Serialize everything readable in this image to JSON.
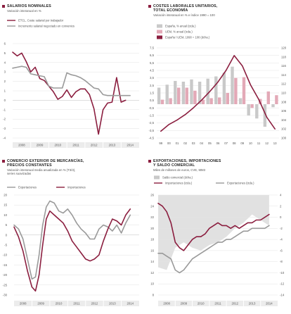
{
  "colors": {
    "accent": "#8b1e3f",
    "gray": "#9a9a9a",
    "lightbar": "#c9c9c9",
    "pinkbar": "#e3a9b7",
    "grid": "#e3e3e3"
  },
  "chart_data": [
    {
      "id": "salarios",
      "type": "line",
      "title": "SALARIOS NOMINALES",
      "subtitle": "Variación interanual en %",
      "legend": [
        "ETCL. Coste salarial por trabajador",
        "Incremento salarial negociado en convenios"
      ],
      "ylim": [
        -4,
        6
      ],
      "y_ticks": [
        "6",
        "5",
        "4",
        "3",
        "2",
        "1",
        "0",
        "-1",
        "-2",
        "-3",
        "-4"
      ],
      "x_ticks": [
        "2008",
        "2009",
        "2010",
        "2011",
        "2012",
        "2013",
        "2014"
      ],
      "xlim": [
        2008,
        2015
      ],
      "series": [
        {
          "name": "ETCL. Coste salarial por trabajador",
          "color": "accent",
          "x": [
            2008,
            2008.25,
            2008.5,
            2008.75,
            2009,
            2009.25,
            2009.5,
            2009.75,
            2010,
            2010.25,
            2010.5,
            2010.75,
            2011,
            2011.25,
            2011.5,
            2011.75,
            2012,
            2012.25,
            2012.5,
            2012.75,
            2013,
            2013.25,
            2013.5,
            2013.75,
            2014,
            2014.25
          ],
          "y": [
            5.1,
            4.7,
            5.0,
            4.1,
            3.0,
            3.5,
            2.3,
            2.1,
            1.5,
            0.9,
            0.1,
            0.4,
            1.1,
            0.3,
            0.9,
            1.2,
            1.2,
            0.6,
            -0.9,
            -3.6,
            -1.0,
            -0.3,
            -0.2,
            2.4,
            -0.2,
            0.0
          ]
        },
        {
          "name": "Incremento salarial negociado en convenios",
          "color": "gray",
          "x": [
            2008,
            2008.25,
            2008.5,
            2008.75,
            2009,
            2009.25,
            2009.5,
            2009.75,
            2010,
            2010.25,
            2010.5,
            2010.75,
            2011,
            2011.25,
            2011.5,
            2011.75,
            2012,
            2012.25,
            2012.5,
            2012.75,
            2013,
            2013.25,
            2013.5,
            2013.75,
            2014,
            2014.25,
            2014.5
          ],
          "y": [
            3.4,
            3.5,
            3.6,
            3.5,
            2.8,
            2.7,
            2.6,
            2.5,
            1.5,
            1.3,
            1.3,
            1.3,
            2.9,
            2.7,
            2.6,
            2.4,
            2.1,
            1.7,
            1.3,
            1.2,
            0.6,
            0.5,
            0.5,
            0.5,
            0.5,
            0.5,
            0.5
          ]
        }
      ]
    },
    {
      "id": "costes",
      "type": "bar",
      "title": "COSTES LABORALES UNITARIOS,\nTOTAL ECONOMÍA",
      "subtitle": "Variación interanual en % e índice 1990 = 100",
      "legend": [
        "España, % anual (izda.)",
        "UEM, % anual (izda.)",
        "España / UEM, 1990 = 100 (dcha.)"
      ],
      "categories": [
        "99",
        "00",
        "01",
        "02",
        "03",
        "04",
        "05",
        "06",
        "07",
        "08",
        "09",
        "10",
        "11",
        "12",
        "13"
      ],
      "ylim": [
        -4.5,
        7.5
      ],
      "y_ticks": [
        "7,5",
        "6,5",
        "5,5",
        "4,5",
        "3,5",
        "2,5",
        "1,5",
        "0,5",
        "-0,5",
        "-1,5",
        "-2,5",
        "-3,5",
        "-4,5"
      ],
      "y2lim": [
        100,
        120
      ],
      "y2_ticks": [
        "120",
        "118",
        "116",
        "114",
        "112",
        "110",
        "108",
        "106",
        "104",
        "102",
        "100"
      ],
      "series": [
        {
          "name": "España, % anual (izda.)",
          "color": "lightbar",
          "values": [
            2.2,
            2.6,
            3.1,
            3.0,
            3.3,
            3.0,
            3.4,
            3.7,
            4.2,
            5.0,
            0.8,
            -1.5,
            -1.9,
            -3.0,
            -0.4
          ]
        },
        {
          "name": "UEM, % anual (izda.)",
          "color": "pinkbar",
          "values": [
            0.6,
            0.8,
            2.2,
            2.2,
            1.8,
            0.6,
            0.8,
            0.9,
            1.5,
            3.5,
            3.6,
            -0.5,
            0.7,
            1.7,
            1.2
          ]
        },
        {
          "name": "España / UEM, 1990 = 100 (dcha.)",
          "color": "accent",
          "axis": "right",
          "x": [
            0,
            1,
            2,
            3,
            4,
            5,
            6,
            7,
            8,
            9,
            10,
            11,
            12,
            13,
            14
          ],
          "y": [
            101.5,
            103.0,
            104.0,
            105.2,
            106.7,
            108.4,
            110.3,
            112.4,
            115.0,
            118.3,
            116.0,
            111.8,
            108.6,
            104.6,
            102.0
          ]
        }
      ]
    },
    {
      "id": "comercio",
      "type": "line",
      "title": "COMERCIO EXTERIOR DE MERCANCÍAS,\nPRECIOS CONSTANTES",
      "subtitle": "Variación interanual media anualizada en % (T3/3),\nseries suavizadas",
      "legend": [
        "Exportaciones",
        "Importaciones"
      ],
      "ylim": [
        -30,
        20
      ],
      "y_ticks": [
        "20",
        "15",
        "10",
        "5",
        "0",
        "-5",
        "-10",
        "-15",
        "-20",
        "-25",
        "-30"
      ],
      "x_ticks": [
        "2008",
        "2009",
        "2010",
        "2011",
        "2012",
        "2013",
        "2014"
      ],
      "xlim": [
        2008,
        2015
      ],
      "series": [
        {
          "name": "Exportaciones",
          "color": "gray",
          "x": [
            2008,
            2008.25,
            2008.5,
            2008.75,
            2009,
            2009.2,
            2009.4,
            2009.6,
            2009.8,
            2010,
            2010.25,
            2010.5,
            2010.75,
            2011,
            2011.25,
            2011.5,
            2011.75,
            2012,
            2012.25,
            2012.5,
            2012.75,
            2013,
            2013.25,
            2013.5,
            2013.75,
            2014,
            2014.25,
            2014.5
          ],
          "y": [
            5,
            3,
            -2,
            -12,
            -22,
            -21,
            -10,
            5,
            14,
            17,
            16,
            12,
            11,
            13,
            10,
            6,
            3,
            1,
            -2,
            -2,
            3,
            5,
            4,
            2,
            5,
            1,
            6,
            10
          ]
        },
        {
          "name": "Importaciones",
          "color": "accent",
          "x": [
            2008,
            2008.25,
            2008.5,
            2008.75,
            2009,
            2009.2,
            2009.4,
            2009.6,
            2009.8,
            2010,
            2010.25,
            2010.5,
            2010.75,
            2011,
            2011.25,
            2011.5,
            2011.75,
            2012,
            2012.25,
            2012.5,
            2012.75,
            2013,
            2013.25,
            2013.5,
            2013.75,
            2014,
            2014.25,
            2014.5
          ],
          "y": [
            4,
            -1,
            -8,
            -18,
            -26,
            -28,
            -20,
            -5,
            8,
            12,
            10,
            8,
            6,
            2,
            -3,
            -6,
            -9,
            -12,
            -13,
            -12,
            -10,
            -3,
            3,
            8,
            7,
            5,
            10,
            13
          ]
        }
      ]
    },
    {
      "id": "exportaciones",
      "type": "area",
      "title": "EXPORTACIONES, IMPORTACIONES\nY SALDO COMERCIAL",
      "subtitle": "Miles de millones de euros, CVE, MM3",
      "legend": [
        "Saldo comercial (dcha.)",
        "Importaciones (izda.)",
        "Exportaciones (izda.)"
      ],
      "ylim": [
        8,
        26
      ],
      "y_ticks": [
        "26",
        "24",
        "22",
        "20",
        "18",
        "16",
        "14",
        "12",
        "10",
        "8"
      ],
      "y2lim": [
        -14,
        4
      ],
      "y2_ticks": [
        "4",
        "2",
        "0",
        "-2",
        "-4",
        "-6",
        "-8",
        "-10",
        "-12",
        "-14"
      ],
      "x_ticks": [
        "2008",
        "2009",
        "2010",
        "2011",
        "2012",
        "2013",
        "2014"
      ],
      "xlim": [
        2008,
        2015
      ],
      "series": [
        {
          "name": "Saldo comercial (dcha.)",
          "color": "lightbar",
          "axis": "right",
          "x": [
            2008,
            2008.5,
            2009,
            2009.5,
            2010,
            2010.5,
            2011,
            2011.5,
            2012,
            2012.5,
            2013,
            2013.5,
            2014,
            2014.5
          ],
          "y": [
            -9.0,
            -9.5,
            -5.5,
            -4.5,
            -5.5,
            -6.0,
            -5.0,
            -4.5,
            -3.5,
            -2.0,
            -1.0,
            0.5,
            -0.5,
            -1.5
          ]
        },
        {
          "name": "Importaciones (izda.)",
          "color": "accent",
          "x": [
            2008,
            2008.25,
            2008.5,
            2008.75,
            2009,
            2009.25,
            2009.5,
            2009.75,
            2010,
            2010.25,
            2010.5,
            2010.75,
            2011,
            2011.25,
            2011.5,
            2011.75,
            2012,
            2012.25,
            2012.5,
            2012.75,
            2013,
            2013.25,
            2013.5,
            2013.75,
            2014,
            2014.25,
            2014.5
          ],
          "y": [
            24.5,
            24.0,
            23.0,
            21.0,
            17.5,
            16.5,
            16.0,
            17.0,
            18.0,
            18.5,
            18.5,
            19.0,
            20.0,
            20.5,
            21.0,
            20.5,
            20.5,
            20.0,
            20.5,
            20.0,
            20.5,
            21.0,
            21.0,
            21.5,
            21.5,
            22.0,
            22.5
          ]
        },
        {
          "name": "Exportaciones (izda.)",
          "color": "gray",
          "x": [
            2008,
            2008.25,
            2008.5,
            2008.75,
            2009,
            2009.25,
            2009.5,
            2009.75,
            2010,
            2010.25,
            2010.5,
            2010.75,
            2011,
            2011.25,
            2011.5,
            2011.75,
            2012,
            2012.25,
            2012.5,
            2012.75,
            2013,
            2013.25,
            2013.5,
            2013.75,
            2014,
            2014.25,
            2014.5
          ],
          "y": [
            15.5,
            15.5,
            15.0,
            14.5,
            12.5,
            12.0,
            12.5,
            13.5,
            14.5,
            15.0,
            15.5,
            16.0,
            16.5,
            17.0,
            17.5,
            17.5,
            18.0,
            18.0,
            18.5,
            19.0,
            19.5,
            19.5,
            20.0,
            20.0,
            20.0,
            20.0,
            20.5
          ]
        }
      ]
    }
  ]
}
